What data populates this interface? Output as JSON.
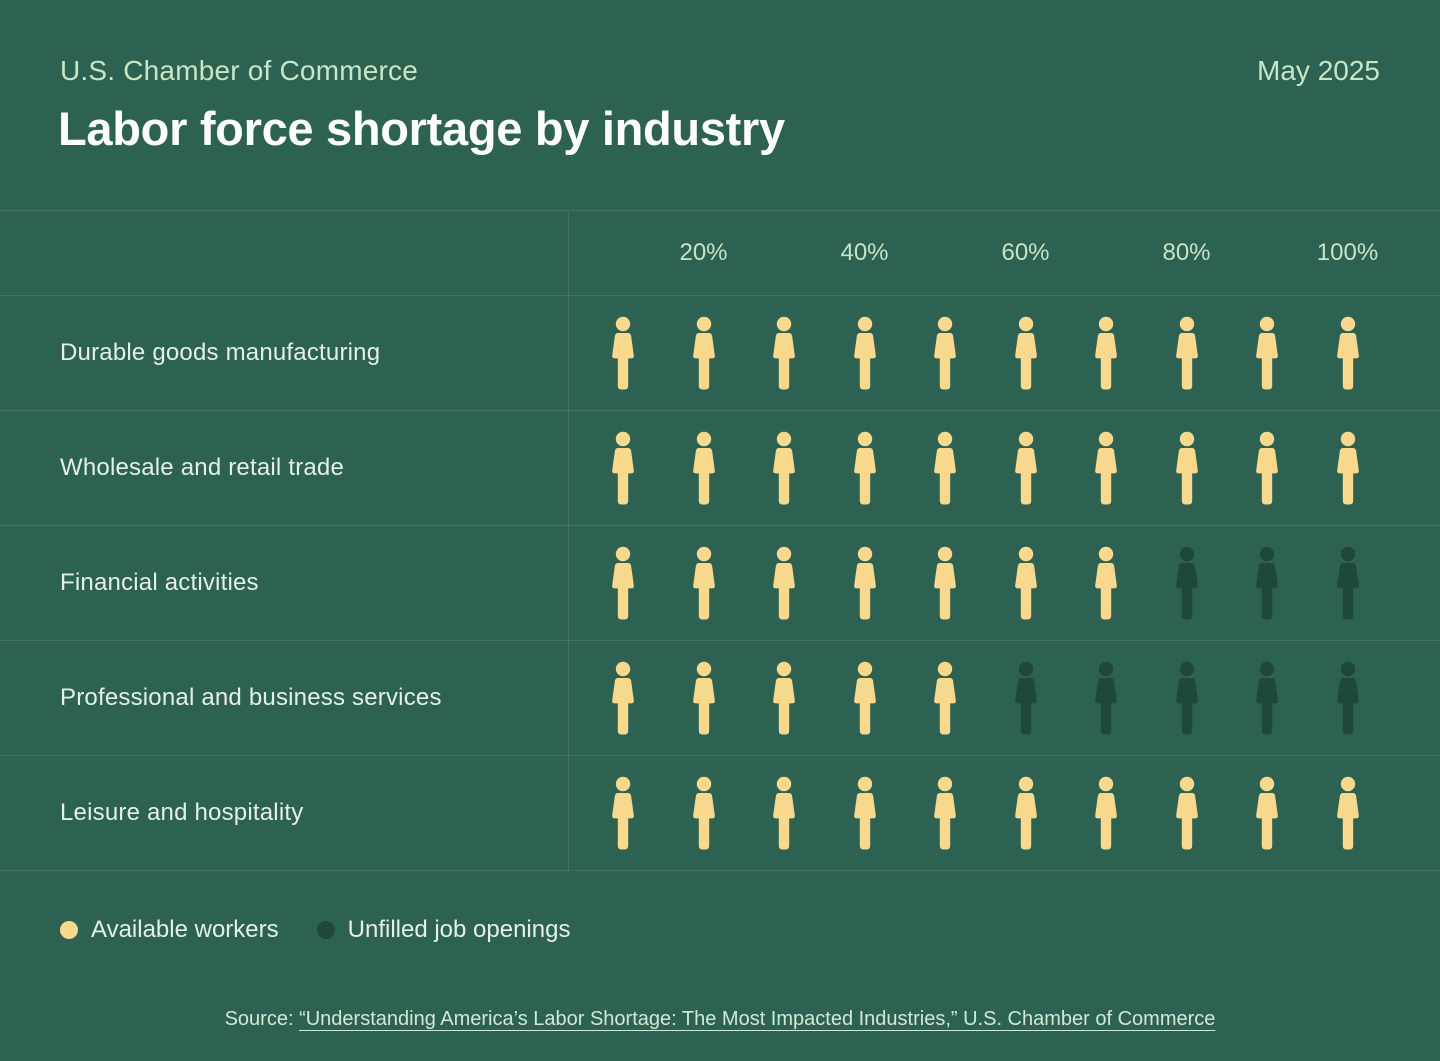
{
  "header": {
    "kicker": "U.S. Chamber of Commerce",
    "date": "May 2025",
    "title": "Labor force shortage by industry"
  },
  "chart_data": {
    "type": "bar",
    "variant": "pictogram unit chart (each person icon = 10%)",
    "icons_per_row": 10,
    "percent_per_icon": 10,
    "axis_ticks": [
      "20%",
      "40%",
      "60%",
      "80%",
      "100%"
    ],
    "categories": [
      "Durable goods manufacturing",
      "Wholesale and retail trade",
      "Financial activities",
      "Professional and business services",
      "Leisure and hospitality"
    ],
    "series": [
      {
        "name": "Available workers",
        "color": "#f8d88c",
        "values_percent": [
          100,
          100,
          70,
          50,
          100
        ]
      },
      {
        "name": "Unfilled job openings",
        "color": "#1e483a",
        "values_percent": [
          0,
          0,
          30,
          50,
          0
        ]
      }
    ],
    "rows": [
      {
        "label": "Durable goods manufacturing",
        "available_icons": 10,
        "unfilled_icons": 0
      },
      {
        "label": "Wholesale and retail trade",
        "available_icons": 10,
        "unfilled_icons": 0
      },
      {
        "label": "Financial activities",
        "available_icons": 7,
        "unfilled_icons": 3
      },
      {
        "label": "Professional and business services",
        "available_icons": 5,
        "unfilled_icons": 5
      },
      {
        "label": "Leisure and hospitality",
        "available_icons": 10,
        "unfilled_icons": 0
      }
    ],
    "legend_position": "bottom-left",
    "grid": "row dividers and label column divider"
  },
  "legend": {
    "items": [
      {
        "label": "Available workers",
        "color": "#f8d88c"
      },
      {
        "label": "Unfilled job openings",
        "color": "#1e483a"
      }
    ]
  },
  "source": {
    "prefix": "Source: ",
    "link_text": "“Understanding America’s Labor Shortage: The Most Impacted Industries,” U.S. Chamber of Commerce"
  },
  "theme": {
    "background": "#2d6253",
    "title_color": "#fbfdf8",
    "pale_green_text": "#c8e6c6",
    "row_label_color": "#e4efe7",
    "available_yellow": "#f8d88c",
    "unfilled_dark_green": "#1e483a",
    "grid_line": "#3f6e60"
  }
}
